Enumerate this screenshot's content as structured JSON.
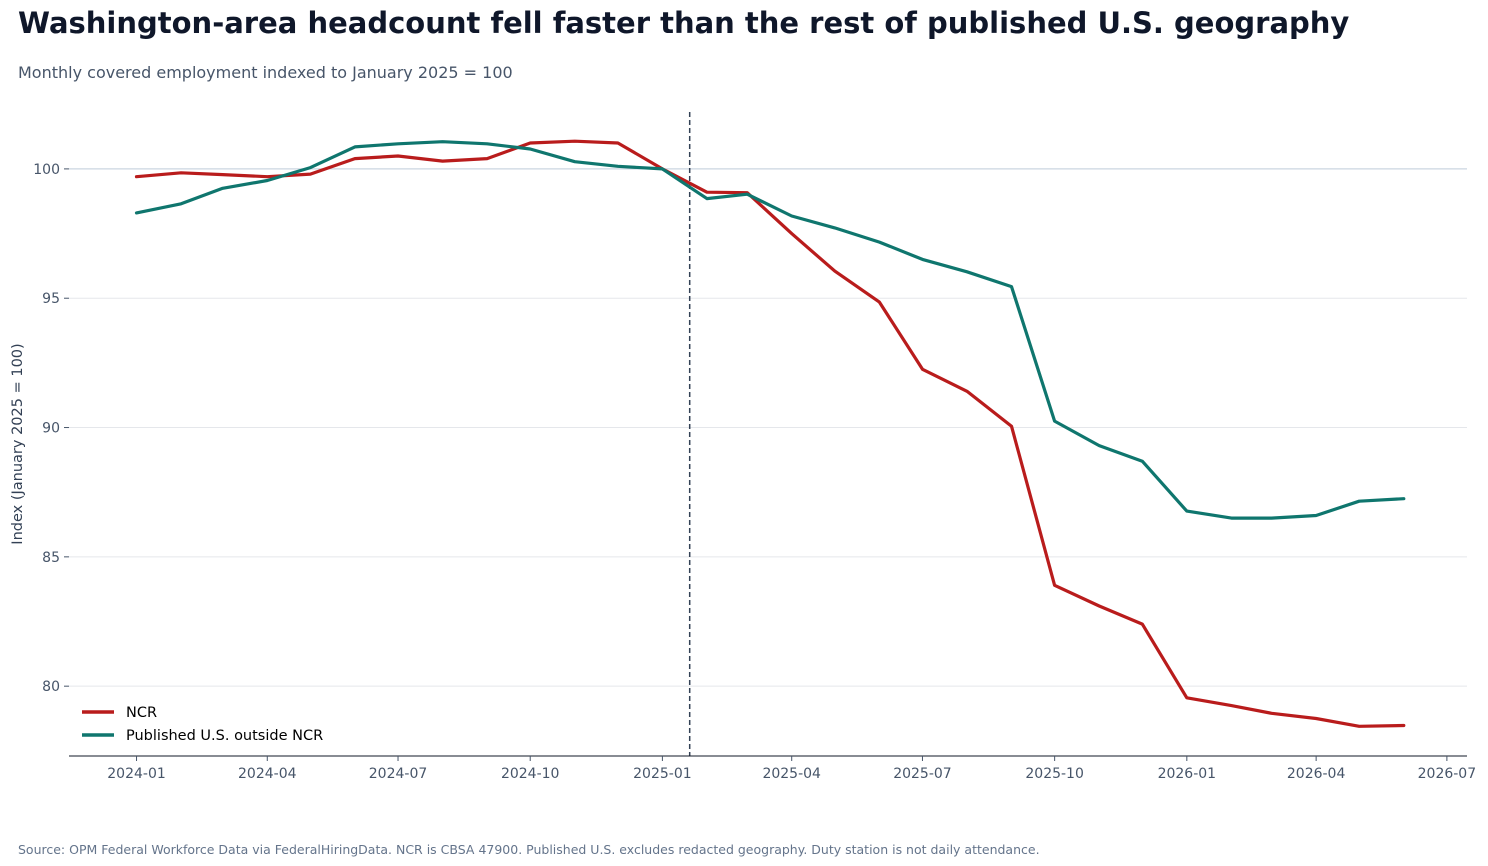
{
  "title": "Washington-area headcount fell faster than the rest of published U.S. geography",
  "subtitle": "Monthly covered employment indexed to January 2025 = 100",
  "footer": "Source: OPM Federal Workforce Data via FederalHiringData. NCR is CBSA 47900. Published U.S. excludes redacted geography. Duty station is not daily attendance.",
  "chart_data": {
    "type": "line",
    "title": "Washington-area headcount fell faster than the rest of published U.S. geography",
    "subtitle": "Monthly covered employment indexed to January 2025 = 100",
    "xlabel": "",
    "ylabel": "Index (January 2025 = 100)",
    "x_ticks": [
      "2024-01",
      "2024-04",
      "2024-07",
      "2024-10",
      "2025-01",
      "2025-04",
      "2025-07",
      "2025-10",
      "2026-01",
      "2026-04",
      "2026-07"
    ],
    "y_ticks": [
      80,
      85,
      90,
      95,
      100
    ],
    "xlim": [
      "2023-11-15",
      "2026-07-15"
    ],
    "ylim": [
      77.3,
      102.2
    ],
    "grid": "horizontal",
    "legend_position": "lower-left",
    "reference_line": {
      "x": "2025-01-20",
      "style": "dashed",
      "color": "#334155"
    },
    "x": [
      "2024-01",
      "2024-02",
      "2024-03",
      "2024-04",
      "2024-05",
      "2024-06",
      "2024-07",
      "2024-08",
      "2024-09",
      "2024-10",
      "2024-11",
      "2024-12",
      "2025-01",
      "2025-02",
      "2025-03",
      "2025-04",
      "2025-05",
      "2025-06",
      "2025-07",
      "2025-08",
      "2025-09",
      "2025-10",
      "2025-11",
      "2025-12",
      "2026-01",
      "2026-02",
      "2026-03",
      "2026-04",
      "2026-05",
      "2026-06"
    ],
    "series": [
      {
        "name": "NCR",
        "color": "#b91c1c",
        "values": [
          99.7,
          99.85,
          99.78,
          99.7,
          99.8,
          100.4,
          100.5,
          100.3,
          100.4,
          101.0,
          101.07,
          101.0,
          100.0,
          99.1,
          99.08,
          97.5,
          96.05,
          94.85,
          92.25,
          91.4,
          90.05,
          83.9,
          83.1,
          82.4,
          79.55,
          79.25,
          78.95,
          78.75,
          78.45,
          78.48
        ]
      },
      {
        "name": "Published U.S. outside NCR",
        "color": "#0f766e",
        "values": [
          98.3,
          98.65,
          99.25,
          99.55,
          100.05,
          100.85,
          100.97,
          101.05,
          100.97,
          100.77,
          100.28,
          100.1,
          100.0,
          98.85,
          99.02,
          98.18,
          97.72,
          97.17,
          96.5,
          96.02,
          95.45,
          90.25,
          89.3,
          88.7,
          86.77,
          86.5,
          86.5,
          86.6,
          87.15,
          87.25
        ]
      }
    ]
  }
}
